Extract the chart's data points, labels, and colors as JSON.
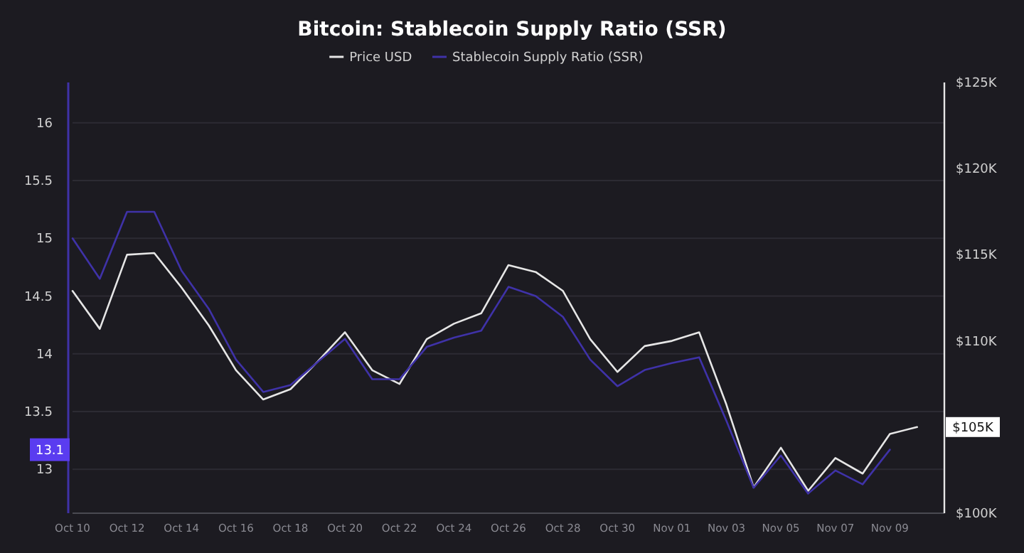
{
  "chart_data": {
    "type": "line",
    "title": "Bitcoin: Stablecoin Supply Ratio (SSR)",
    "x": [
      "--10-10",
      "--10-11",
      "--10-12",
      "--10-13",
      "--10-14",
      "--10-15",
      "--10-16",
      "--10-17",
      "--10-18",
      "--10-19",
      "--10-20",
      "--10-21",
      "--10-22",
      "--10-23",
      "--10-24",
      "--10-25",
      "--10-26",
      "--10-27",
      "--10-28",
      "--10-29",
      "--10-30",
      "--10-31",
      "--11-01",
      "--11-02",
      "--11-03",
      "--11-04",
      "--11-05",
      "--11-06",
      "--11-07",
      "--11-08",
      "--11-09",
      "--11-10"
    ],
    "series": [
      {
        "name": "Price USD",
        "color": "#e6e6e6",
        "axis": "y2",
        "values": [
          112.9,
          110.7,
          115.0,
          115.1,
          113.1,
          110.9,
          108.3,
          106.6,
          107.2,
          108.8,
          110.5,
          108.3,
          107.5,
          110.1,
          111.0,
          111.6,
          114.4,
          114.0,
          112.9,
          110.1,
          108.2,
          109.7,
          110.0,
          110.5,
          106.3,
          101.5,
          103.8,
          101.3,
          103.2,
          102.3,
          104.6,
          105.0
        ]
      },
      {
        "name": "Stablecoin Supply Ratio (SSR)",
        "color": "#3f32a8",
        "values": [
          15.0,
          14.65,
          15.23,
          15.23,
          14.72,
          14.39,
          13.95,
          13.67,
          13.73,
          13.93,
          14.13,
          13.78,
          13.78,
          14.06,
          14.14,
          14.2,
          14.58,
          14.5,
          14.32,
          13.95,
          13.72,
          13.86,
          13.92,
          13.97,
          13.42,
          12.84,
          13.12,
          12.79,
          12.99,
          12.87,
          13.17,
          null
        ]
      }
    ],
    "xlim": [
      "--10-10",
      "--11-11"
    ],
    "xticks": [
      {
        "value": "--10-10",
        "label": "Oct 10"
      },
      {
        "value": "--10-12",
        "label": "Oct 12"
      },
      {
        "value": "--10-14",
        "label": "Oct 14"
      },
      {
        "value": "--10-16",
        "label": "Oct 16"
      },
      {
        "value": "--10-18",
        "label": "Oct 18"
      },
      {
        "value": "--10-20",
        "label": "Oct 20"
      },
      {
        "value": "--10-22",
        "label": "Oct 22"
      },
      {
        "value": "--10-24",
        "label": "Oct 24"
      },
      {
        "value": "--10-26",
        "label": "Oct 26"
      },
      {
        "value": "--10-28",
        "label": "Oct 28"
      },
      {
        "value": "--10-30",
        "label": "Oct 30"
      },
      {
        "value": "--11-01",
        "label": "Nov 01"
      },
      {
        "value": "--11-03",
        "label": "Nov 03"
      },
      {
        "value": "--11-05",
        "label": "Nov 05"
      },
      {
        "value": "--11-07",
        "label": "Nov 07"
      },
      {
        "value": "--11-09",
        "label": "Nov 09"
      }
    ],
    "ylim": [
      12.62,
      16.35
    ],
    "yticks": [
      13,
      13.5,
      14,
      14.5,
      15,
      15.5,
      16
    ],
    "y2lim": [
      100,
      125
    ],
    "y2ticks": [
      {
        "value": 100,
        "label": "$100K"
      },
      {
        "value": 110,
        "label": "$110K"
      },
      {
        "value": 115,
        "label": "$115K"
      },
      {
        "value": 120,
        "label": "$120K"
      },
      {
        "value": 125,
        "label": "$125K"
      }
    ],
    "annotations": [
      "13.1",
      "$105K"
    ],
    "grid": "y",
    "legend": "top",
    "line_style": "solid"
  }
}
